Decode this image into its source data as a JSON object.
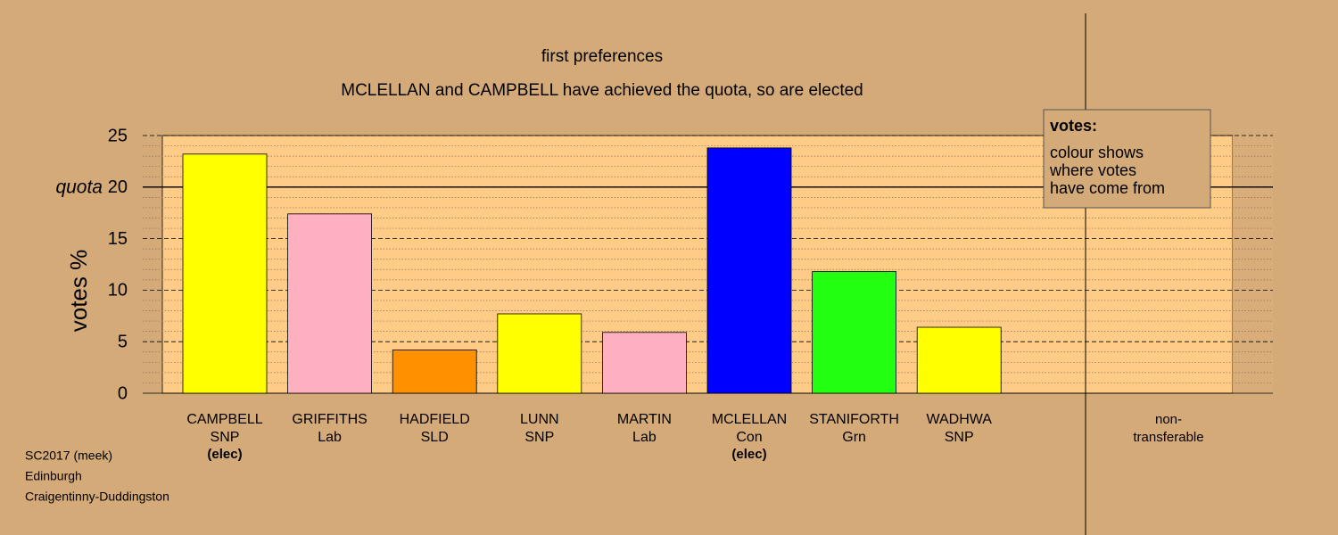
{
  "chart_data": {
    "type": "bar",
    "title": "first preferences",
    "subtitle": "MCLELLAN and CAMPBELL have achieved the quota, so are elected",
    "ylabel": "votes %",
    "quota_label": "quota",
    "quota": 20,
    "categories": [
      [
        "CAMPBELL",
        "SNP",
        "(elec)"
      ],
      [
        "GRIFFITHS",
        "Lab"
      ],
      [
        "HADFIELD",
        "SLD"
      ],
      [
        "LUNN",
        "SNP"
      ],
      [
        "MARTIN",
        "Lab"
      ],
      [
        "MCLELLAN",
        "Con",
        "(elec)"
      ],
      [
        "STANIFORTH",
        "Grn"
      ],
      [
        "WADHWA",
        "SNP"
      ],
      [
        "non-",
        "transferable"
      ]
    ],
    "values": [
      23.2,
      17.4,
      4.2,
      7.7,
      5.9,
      23.8,
      11.8,
      6.4,
      0
    ],
    "colors": [
      "#ffff00",
      "#ffb0c0",
      "#ff9000",
      "#ffff00",
      "#ffb0c0",
      "#0000ff",
      "#22ff11",
      "#ffff00",
      null
    ],
    "ylim": [
      0,
      25
    ],
    "yticks": [
      0,
      5,
      10,
      15,
      20,
      25
    ],
    "minor_yticks": [
      1,
      2,
      3,
      4,
      6,
      7,
      8,
      9,
      11,
      12,
      13,
      14,
      16,
      17,
      18,
      19,
      21,
      22,
      23,
      24
    ],
    "grid": true,
    "legend": {
      "title": "votes:",
      "lines": [
        "colour shows",
        "where votes",
        "have come from"
      ]
    },
    "footer": [
      "SC2017 (meek)",
      "Edinburgh",
      "Craigentinny-Duddingston"
    ]
  }
}
